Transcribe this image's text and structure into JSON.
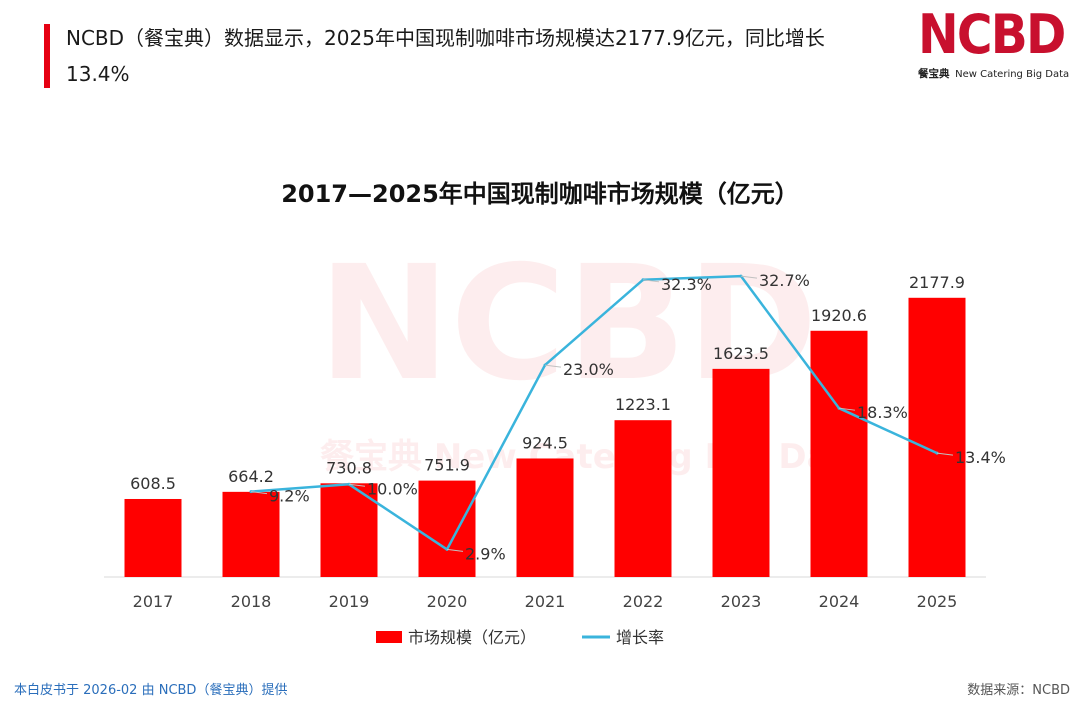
{
  "header": {
    "headline": "NCBD（餐宝典）数据显示，2025年中国现制咖啡市场规模达2177.9亿元，同比增长13.4%",
    "brand_main": "NCBD",
    "brand_cn": "餐宝典",
    "brand_en": "New Catering Big Data"
  },
  "watermark": {
    "main": "NCBD",
    "sub": "餐宝典 New Catering Big Data"
  },
  "chart_data": {
    "type": "bar",
    "title": "2017—2025年中国现制咖啡市场规模（亿元）",
    "categories": [
      "2017",
      "2018",
      "2019",
      "2020",
      "2021",
      "2022",
      "2023",
      "2024",
      "2025"
    ],
    "series": [
      {
        "name": "市场规模（亿元）",
        "kind": "bar",
        "color": "#ff0000",
        "values": [
          608.5,
          664.2,
          730.8,
          751.9,
          924.5,
          1223.1,
          1623.5,
          1920.6,
          2177.9
        ],
        "labels": [
          "608.5",
          "664.2",
          "730.8",
          "751.9",
          "924.5",
          "1223.1",
          "1623.5",
          "1920.6",
          "2177.9"
        ]
      },
      {
        "name": "增长率",
        "kind": "line",
        "color": "#3ab4dc",
        "values": [
          null,
          9.2,
          10.0,
          2.9,
          23.0,
          32.3,
          32.7,
          18.3,
          13.4
        ],
        "labels": [
          "",
          "9.2%",
          "10.0%",
          "2.9%",
          "23.0%",
          "32.3%",
          "32.7%",
          "18.3%",
          "13.4%"
        ]
      }
    ],
    "ylim_bar": [
      0,
      2200
    ],
    "ylim_line": [
      0,
      36
    ],
    "legend": "bottom"
  },
  "footer": {
    "left": "本白皮书于 2026-02 由 NCBD（餐宝典）提供",
    "right": "数据来源：NCBD"
  }
}
